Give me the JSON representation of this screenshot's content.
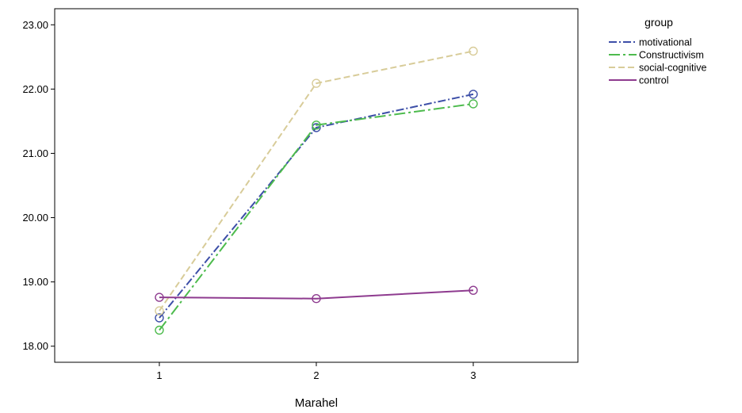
{
  "chart_data": {
    "type": "line",
    "title": "",
    "xlabel": "Marahel",
    "ylabel": "",
    "categories": [
      "1",
      "2",
      "3"
    ],
    "ylim": [
      17.75,
      23.25
    ],
    "yticks": [
      "18.00",
      "19.00",
      "20.00",
      "21.00",
      "22.00",
      "23.00"
    ],
    "grid": false,
    "legend": {
      "title": "group",
      "position": "right"
    },
    "series": [
      {
        "name": "motivational",
        "values": [
          18.44,
          21.4,
          21.92
        ],
        "color": "#3d4fa8",
        "dash": "dashdot",
        "marker": "circle"
      },
      {
        "name": "Constructivism",
        "values": [
          18.25,
          21.44,
          21.77
        ],
        "color": "#4dbb4d",
        "dash": "longdash-dot",
        "marker": "circle"
      },
      {
        "name": "social-cognitive",
        "values": [
          18.55,
          22.09,
          22.59
        ],
        "color": "#d8cc99",
        "dash": "dash",
        "marker": "circle"
      },
      {
        "name": "control",
        "values": [
          18.76,
          18.74,
          18.87
        ],
        "color": "#8e3b8f",
        "dash": "solid",
        "marker": "circle"
      }
    ]
  }
}
